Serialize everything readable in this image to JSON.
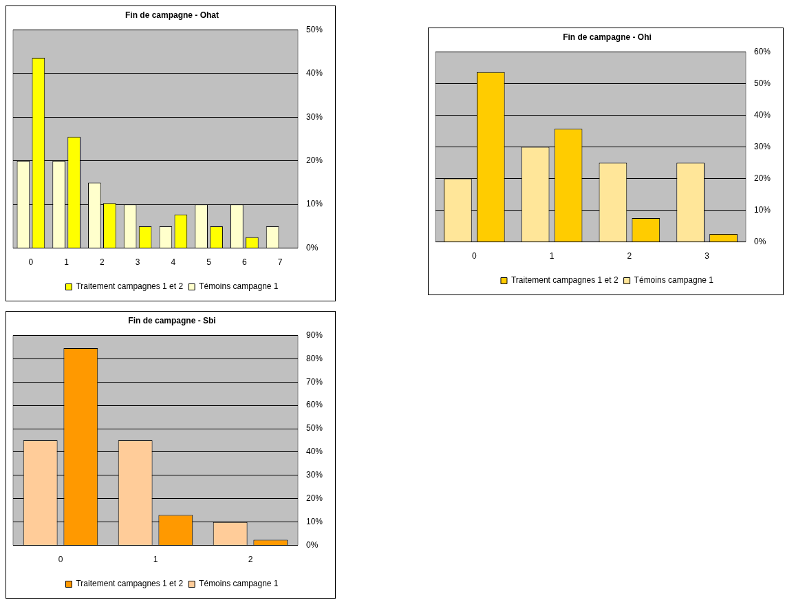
{
  "chart_data": [
    {
      "type": "bar",
      "title": "Fin de campagne - Ohat",
      "categories": [
        "0",
        "1",
        "2",
        "3",
        "4",
        "5",
        "6",
        "7"
      ],
      "series": [
        {
          "name": "Témoins campagne 1",
          "color": "#ffffcc",
          "values": [
            20,
            20,
            15,
            10,
            5,
            10,
            10,
            5
          ]
        },
        {
          "name": "Traitement campagnes 1 et 2",
          "color": "#ffff00",
          "values": [
            43.6,
            25.5,
            10.3,
            5,
            7.7,
            5,
            2.5,
            null
          ]
        }
      ],
      "ylim": [
        0,
        50
      ],
      "yticks": [
        {
          "value": 0,
          "label": "0%"
        },
        {
          "value": 10,
          "label": "10%"
        },
        {
          "value": 20,
          "label": "20%"
        },
        {
          "value": 30,
          "label": "30%"
        },
        {
          "value": 40,
          "label": "40%"
        },
        {
          "value": 50,
          "label": "50%"
        }
      ],
      "grid": "y",
      "legend": "bottom"
    },
    {
      "type": "bar",
      "title": "Fin de campagne - Ohi",
      "categories": [
        "0",
        "1",
        "2",
        "3"
      ],
      "series": [
        {
          "name": "Témoins campagne 1",
          "color": "#ffe699",
          "values": [
            20,
            30,
            25,
            25
          ]
        },
        {
          "name": "Traitement campagnes 1 et 2",
          "color": "#ffcc00",
          "values": [
            53.6,
            35.7,
            7.5,
            2.5
          ]
        }
      ],
      "ylim": [
        0,
        60
      ],
      "yticks": [
        {
          "value": 0,
          "label": "0%"
        },
        {
          "value": 10,
          "label": "10%"
        },
        {
          "value": 20,
          "label": "20%"
        },
        {
          "value": 30,
          "label": "30%"
        },
        {
          "value": 40,
          "label": "40%"
        },
        {
          "value": 50,
          "label": "50%"
        },
        {
          "value": 60,
          "label": "60%"
        }
      ],
      "grid": "y",
      "legend": "bottom"
    },
    {
      "type": "bar",
      "title": "Fin de campagne - Sbi",
      "categories": [
        "0",
        "1",
        "2"
      ],
      "series": [
        {
          "name": "Témoins campagne 1",
          "color": "#ffcc99",
          "values": [
            45,
            45,
            10
          ]
        },
        {
          "name": "Traitement campagnes 1 et 2",
          "color": "#ff9900",
          "values": [
            84.5,
            13,
            2.4
          ]
        }
      ],
      "ylim": [
        0,
        90
      ],
      "yticks": [
        {
          "value": 0,
          "label": "0%"
        },
        {
          "value": 10,
          "label": "10%"
        },
        {
          "value": 20,
          "label": "20%"
        },
        {
          "value": 30,
          "label": "30%"
        },
        {
          "value": 40,
          "label": "40%"
        },
        {
          "value": 50,
          "label": "50%"
        },
        {
          "value": 60,
          "label": "60%"
        },
        {
          "value": 70,
          "label": "70%"
        },
        {
          "value": 80,
          "label": "80%"
        },
        {
          "value": 90,
          "label": "90%"
        }
      ],
      "grid": "y",
      "legend": "bottom"
    }
  ]
}
